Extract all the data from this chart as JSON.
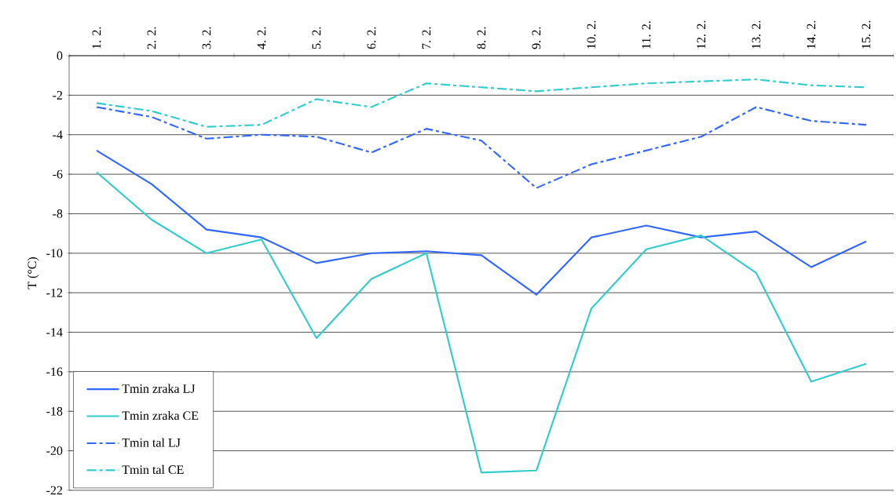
{
  "chart_data": {
    "type": "line",
    "ylabel": "T (°C)",
    "categories": [
      "1. 2.",
      "2. 2.",
      "3. 2.",
      "4. 2.",
      "5. 2.",
      "6. 2.",
      "7. 2.",
      "8. 2.",
      "9. 2.",
      "10. 2.",
      "11. 2.",
      "12. 2.",
      "13. 2.",
      "14. 2.",
      "15. 2."
    ],
    "series": [
      {
        "name": "Tmin zraka LJ",
        "color": "#3366ff",
        "line_style": "solid",
        "values": [
          -4.8,
          -6.5,
          -8.8,
          -9.2,
          -10.5,
          -10.0,
          -9.9,
          -10.1,
          -12.1,
          -9.2,
          -8.6,
          -9.2,
          -8.9,
          -10.7,
          -9.4
        ]
      },
      {
        "name": "Tmin zraka CE",
        "color": "#33cccc",
        "line_style": "solid",
        "values": [
          -5.9,
          -8.3,
          -10.0,
          -9.3,
          -14.3,
          -11.3,
          -10.0,
          -21.1,
          -21.0,
          -12.8,
          -9.8,
          -9.1,
          -11.0,
          -16.5,
          -15.6
        ]
      },
      {
        "name": "Tmin tal LJ",
        "color": "#3366ff",
        "line_style": "dashdot",
        "values": [
          -2.6,
          -3.1,
          -4.2,
          -4.0,
          -4.1,
          -4.9,
          -3.7,
          -4.3,
          -6.7,
          -5.5,
          -4.8,
          -4.1,
          -2.6,
          -3.3,
          -3.5
        ]
      },
      {
        "name": "Tmin tal CE",
        "color": "#33cccc",
        "line_style": "dashdot",
        "values": [
          -2.4,
          -2.8,
          -3.6,
          -3.5,
          -2.2,
          -2.6,
          -1.4,
          -1.6,
          -1.8,
          -1.6,
          -1.4,
          -1.3,
          -1.2,
          -1.5,
          -1.6
        ]
      }
    ],
    "ylim": [
      -22,
      0
    ],
    "yticks": [
      0,
      -2,
      -4,
      -6,
      -8,
      -10,
      -12,
      -14,
      -16,
      -18,
      -20,
      -22
    ],
    "grid": "y",
    "legend": "bottom left",
    "marker": "none"
  }
}
